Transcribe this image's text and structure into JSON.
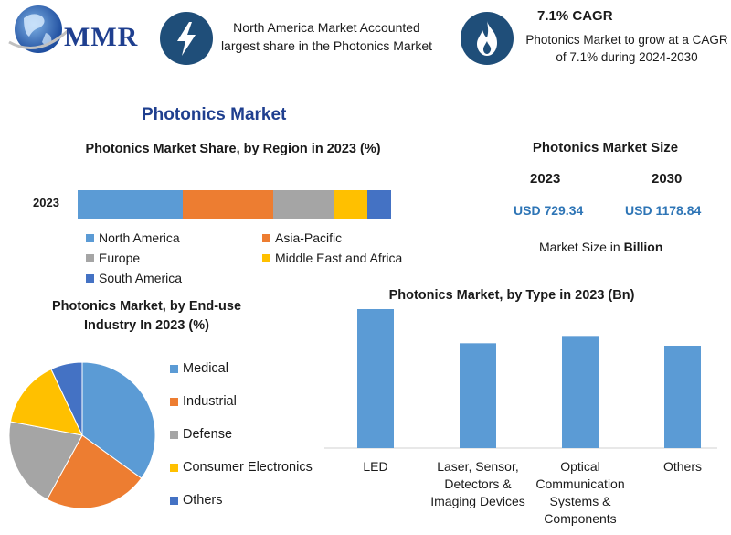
{
  "header": {
    "logo_text": "MMR",
    "info1_text": "North America Market Accounted largest share in the Photonics Market",
    "info1_icon": "lightning-icon",
    "info2_title": "7.1% CAGR",
    "info2_text": "Photonics Market to grow at a CAGR of 7.1% during 2024-2030",
    "info2_icon": "flame-icon"
  },
  "main_title": "Photonics Market",
  "market_size": {
    "title": "Photonics Market Size",
    "year1": "2023",
    "year2": "2030",
    "value1": "USD 729.34",
    "value2": "USD 1178.84",
    "unit_prefix": "Market Size in ",
    "unit_bold": "Billion"
  },
  "colors": {
    "blue": "#5b9bd5",
    "orange": "#ed7d31",
    "gray": "#a5a5a5",
    "yellow": "#ffc000",
    "darkblue": "#4472c4",
    "brand": "#1f3f8f",
    "icon_bg": "#1f4e79",
    "usd": "#2e75b6"
  },
  "chart_data": [
    {
      "type": "bar",
      "orientation": "horizontal-stacked",
      "title": "Photonics Market Share, by Region in 2023 (%)",
      "categories": [
        "2023"
      ],
      "series": [
        {
          "name": "North America",
          "values": [
            33.5
          ],
          "color": "#5b9bd5"
        },
        {
          "name": "Asia-Pacific",
          "values": [
            29
          ],
          "color": "#ed7d31"
        },
        {
          "name": "Europe",
          "values": [
            19
          ],
          "color": "#a5a5a5"
        },
        {
          "name": "Middle East and Africa",
          "values": [
            11
          ],
          "color": "#ffc000"
        },
        {
          "name": "South America",
          "values": [
            7.5
          ],
          "color": "#4472c4"
        }
      ],
      "legend": "bottom"
    },
    {
      "type": "pie",
      "title": "Photonics Market, by End-use Industry In 2023 (%)",
      "labels": [
        "Medical",
        "Industrial",
        "Defense",
        "Consumer Electronics",
        "Others"
      ],
      "values": [
        35,
        23,
        20,
        15,
        7
      ],
      "colors": [
        "#5b9bd5",
        "#ed7d31",
        "#a5a5a5",
        "#ffc000",
        "#4472c4"
      ],
      "legend": "right"
    },
    {
      "type": "bar",
      "title": "Photonics Market, by Type in 2023 (Bn)",
      "categories": [
        "LED",
        "Laser, Sensor, Detectors & Imaging Devices",
        "Optical Communication Systems & Components",
        "Others"
      ],
      "category_lines": [
        [
          "LED"
        ],
        [
          "Laser, Sensor,",
          "Detectors &",
          "Imaging Devices"
        ],
        [
          "Optical",
          "Communication",
          "Systems &",
          "Components"
        ],
        [
          "Others"
        ]
      ],
      "values": [
        228,
        172,
        184,
        168
      ],
      "ylim": [
        0,
        240
      ],
      "color": "#5b9bd5",
      "grid": false
    }
  ]
}
